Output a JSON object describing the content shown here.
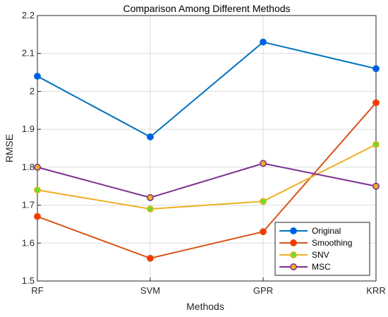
{
  "chart_data": {
    "type": "line",
    "title": "Comparison Among Different Methods",
    "xlabel": "Methods",
    "ylabel": "RMSE",
    "categories": [
      "RF",
      "SVM",
      "GPR",
      "KRR"
    ],
    "ylim": [
      1.5,
      2.2
    ],
    "yticks": [
      "1.5",
      "1.6",
      "1.7",
      "1.8",
      "1.9",
      "2",
      "2.1",
      "2.2"
    ],
    "grid": true,
    "legend_position": "bottom-right",
    "series": [
      {
        "name": "Original",
        "values": [
          2.04,
          1.88,
          2.13,
          2.06
        ],
        "color": "#0072BD",
        "marker_fill": "#0055FF"
      },
      {
        "name": "Smoothing",
        "values": [
          1.67,
          1.56,
          1.63,
          1.97
        ],
        "color": "#D95319",
        "marker_fill": "#FF3300"
      },
      {
        "name": "SNV",
        "values": [
          1.74,
          1.69,
          1.71,
          1.86
        ],
        "color": "#EDB120",
        "marker_fill": "#66DD33"
      },
      {
        "name": "MSC",
        "values": [
          1.8,
          1.72,
          1.81,
          1.75
        ],
        "color": "#7E2F8E",
        "marker_fill": "#EDB120"
      }
    ]
  }
}
